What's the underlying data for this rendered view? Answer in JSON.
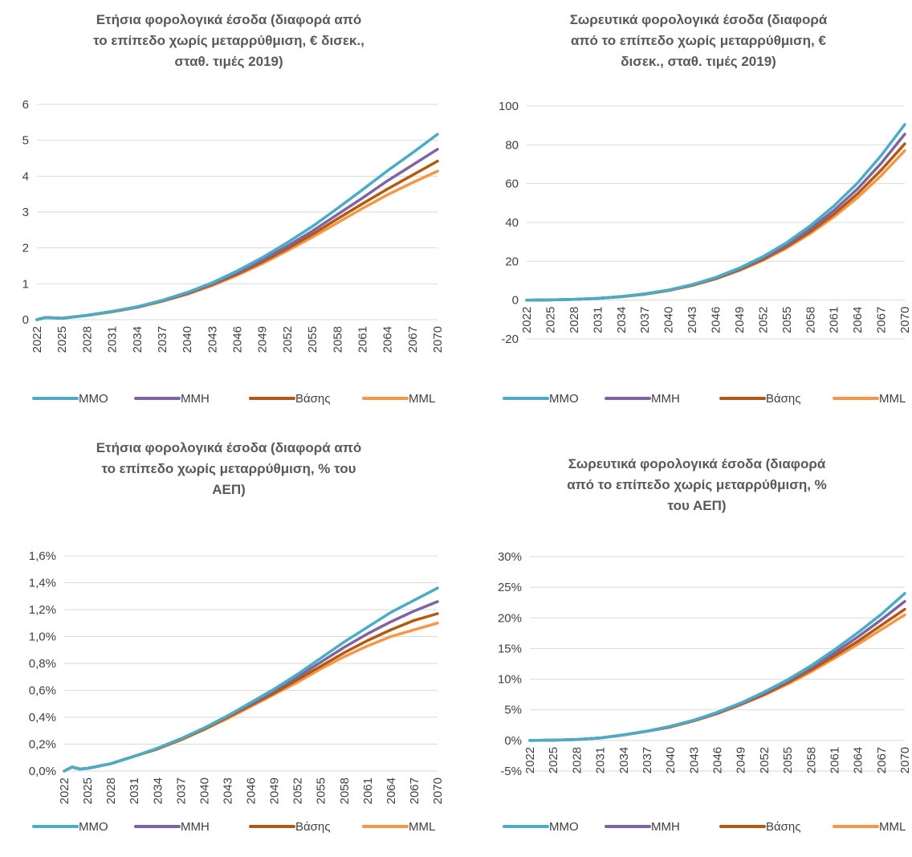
{
  "colors": {
    "MMO": "#4bacc6",
    "MMH": "#8064a2",
    "Basis": "#b35a12",
    "MML": "#f79646",
    "grid": "#d9d9d9"
  },
  "legend": [
    "MMO",
    "MMH",
    "Βάσης",
    "MML"
  ],
  "x_tick_labels": [
    "2022",
    "2025",
    "2028",
    "2031",
    "2034",
    "2037",
    "2040",
    "2043",
    "2046",
    "2049",
    "2052",
    "2055",
    "2058",
    "2061",
    "2064",
    "2067",
    "2070"
  ],
  "chart_data": [
    {
      "type": "line",
      "title_lines": [
        "Ετήσια φορολογικά έσοδα (διαφορά από",
        "το επίπεδο χωρίς μεταρρύθμιση, € δισεκ.,",
        "σταθ. τιμές 2019)"
      ],
      "ylim": [
        0,
        6
      ],
      "y_ticks": [
        0,
        1,
        2,
        3,
        4,
        5,
        6
      ],
      "y_tick_labels": [
        "0",
        "1",
        "2",
        "3",
        "4",
        "5",
        "6"
      ],
      "x": [
        2022,
        2023,
        2025,
        2028,
        2031,
        2034,
        2037,
        2040,
        2043,
        2046,
        2049,
        2052,
        2055,
        2058,
        2061,
        2064,
        2067,
        2070
      ],
      "series": [
        {
          "name": "MMO",
          "values": [
            0,
            0.06,
            0.04,
            0.12,
            0.23,
            0.36,
            0.54,
            0.76,
            1.03,
            1.36,
            1.73,
            2.15,
            2.6,
            3.1,
            3.62,
            4.15,
            4.65,
            5.17
          ]
        },
        {
          "name": "MMH",
          "values": [
            0,
            0.06,
            0.04,
            0.12,
            0.23,
            0.35,
            0.53,
            0.74,
            1.0,
            1.31,
            1.66,
            2.05,
            2.47,
            2.93,
            3.39,
            3.87,
            4.31,
            4.75
          ]
        },
        {
          "name": "Βάσης",
          "values": [
            0,
            0.06,
            0.04,
            0.12,
            0.22,
            0.35,
            0.52,
            0.72,
            0.98,
            1.27,
            1.61,
            1.98,
            2.38,
            2.81,
            3.23,
            3.64,
            4.03,
            4.42
          ]
        },
        {
          "name": "MML",
          "values": [
            0,
            0.06,
            0.04,
            0.12,
            0.22,
            0.34,
            0.51,
            0.71,
            0.95,
            1.24,
            1.56,
            1.92,
            2.3,
            2.7,
            3.1,
            3.48,
            3.82,
            4.14
          ]
        }
      ]
    },
    {
      "type": "line",
      "title_lines": [
        "Σωρευτικά φορολογικά έσοδα (διαφορά",
        "από το επίπεδο χωρίς μεταρρύθμιση, €",
        "δισεκ., σταθ. τιμές 2019)"
      ],
      "ylim": [
        -20,
        100
      ],
      "y_ticks": [
        -20,
        0,
        20,
        40,
        60,
        80,
        100
      ],
      "y_tick_labels": [
        "-20",
        "0",
        "20",
        "40",
        "60",
        "80",
        "100"
      ],
      "x": [
        2022,
        2025,
        2028,
        2031,
        2034,
        2037,
        2040,
        2043,
        2046,
        2049,
        2052,
        2055,
        2058,
        2061,
        2064,
        2067,
        2070
      ],
      "series": [
        {
          "name": "MMO",
          "values": [
            0,
            0.1,
            0.4,
            0.9,
            1.8,
            3.2,
            5.2,
            8.0,
            11.7,
            16.5,
            22.4,
            29.6,
            38.3,
            48.5,
            60.3,
            74.5,
            90.5
          ]
        },
        {
          "name": "MMH",
          "values": [
            0,
            0.1,
            0.4,
            0.9,
            1.8,
            3.2,
            5.1,
            7.8,
            11.4,
            16.0,
            21.7,
            28.5,
            36.7,
            46.2,
            57.3,
            70.5,
            85.5
          ]
        },
        {
          "name": "Βάσης",
          "values": [
            0,
            0.1,
            0.4,
            0.9,
            1.8,
            3.1,
            5.0,
            7.6,
            11.1,
            15.6,
            21.0,
            27.5,
            35.3,
            44.3,
            54.8,
            67.0,
            80.5
          ]
        },
        {
          "name": "MML",
          "values": [
            0,
            0.1,
            0.4,
            0.9,
            1.7,
            3.0,
            4.9,
            7.5,
            10.9,
            15.2,
            20.5,
            26.8,
            34.3,
            42.9,
            52.8,
            64.2,
            77.0
          ]
        }
      ]
    },
    {
      "type": "line",
      "title_lines": [
        "Ετήσια φορολογικά έσοδα (διαφορά από",
        "το επίπεδο χωρίς μεταρρύθμιση, % του",
        "ΑΕΠ)"
      ],
      "ylim": [
        0,
        1.6
      ],
      "y_ticks": [
        0,
        0.2,
        0.4,
        0.6,
        0.8,
        1.0,
        1.2,
        1.4,
        1.6
      ],
      "y_tick_labels": [
        "0,0%",
        "0,2%",
        "0,4%",
        "0,6%",
        "0,8%",
        "1,0%",
        "1,2%",
        "1,4%",
        "1,6%"
      ],
      "x": [
        2022,
        2023,
        2024,
        2025,
        2028,
        2031,
        2034,
        2037,
        2040,
        2043,
        2046,
        2049,
        2052,
        2055,
        2058,
        2061,
        2064,
        2067,
        2070
      ],
      "series": [
        {
          "name": "MMO",
          "values": [
            0,
            0.03,
            0.015,
            0.02,
            0.055,
            0.11,
            0.17,
            0.24,
            0.32,
            0.41,
            0.51,
            0.61,
            0.72,
            0.84,
            0.96,
            1.07,
            1.18,
            1.27,
            1.36
          ]
        },
        {
          "name": "MMH",
          "values": [
            0,
            0.03,
            0.015,
            0.02,
            0.055,
            0.11,
            0.17,
            0.24,
            0.32,
            0.41,
            0.5,
            0.6,
            0.7,
            0.81,
            0.92,
            1.02,
            1.11,
            1.19,
            1.26
          ]
        },
        {
          "name": "Βάσης",
          "values": [
            0,
            0.03,
            0.015,
            0.02,
            0.055,
            0.11,
            0.165,
            0.235,
            0.31,
            0.4,
            0.49,
            0.58,
            0.68,
            0.78,
            0.88,
            0.97,
            1.05,
            1.12,
            1.17
          ]
        },
        {
          "name": "MML",
          "values": [
            0,
            0.03,
            0.015,
            0.02,
            0.055,
            0.11,
            0.165,
            0.23,
            0.31,
            0.39,
            0.48,
            0.57,
            0.66,
            0.76,
            0.85,
            0.93,
            1.0,
            1.05,
            1.1
          ]
        }
      ]
    },
    {
      "type": "line",
      "title_lines": [
        "Σωρευτικά φορολογικά έσοδα (διαφορά",
        "από το επίπεδο χωρίς μεταρρύθμιση, %",
        "του ΑΕΠ)"
      ],
      "ylim": [
        -5,
        30
      ],
      "y_ticks": [
        -5,
        0,
        5,
        10,
        15,
        20,
        25,
        30
      ],
      "y_tick_labels": [
        "-5%",
        "0%",
        "5%",
        "10%",
        "15%",
        "20%",
        "25%",
        "30%"
      ],
      "x": [
        2022,
        2025,
        2028,
        2031,
        2034,
        2037,
        2040,
        2043,
        2046,
        2049,
        2052,
        2055,
        2058,
        2061,
        2064,
        2067,
        2070
      ],
      "series": [
        {
          "name": "MMO",
          "values": [
            0,
            0.05,
            0.15,
            0.4,
            0.9,
            1.5,
            2.3,
            3.3,
            4.6,
            6.1,
            7.9,
            9.9,
            12.2,
            14.8,
            17.6,
            20.6,
            24.0
          ]
        },
        {
          "name": "MMH",
          "values": [
            0,
            0.05,
            0.15,
            0.4,
            0.9,
            1.5,
            2.3,
            3.3,
            4.5,
            6.0,
            7.7,
            9.7,
            11.9,
            14.3,
            16.9,
            19.7,
            22.7
          ]
        },
        {
          "name": "Βάσης",
          "values": [
            0,
            0.05,
            0.15,
            0.4,
            0.9,
            1.5,
            2.2,
            3.2,
            4.4,
            5.9,
            7.5,
            9.4,
            11.5,
            13.8,
            16.2,
            18.8,
            21.4
          ]
        },
        {
          "name": "MML",
          "values": [
            0,
            0.05,
            0.15,
            0.4,
            0.9,
            1.5,
            2.2,
            3.2,
            4.4,
            5.8,
            7.4,
            9.2,
            11.2,
            13.4,
            15.7,
            18.1,
            20.5
          ]
        }
      ]
    }
  ]
}
